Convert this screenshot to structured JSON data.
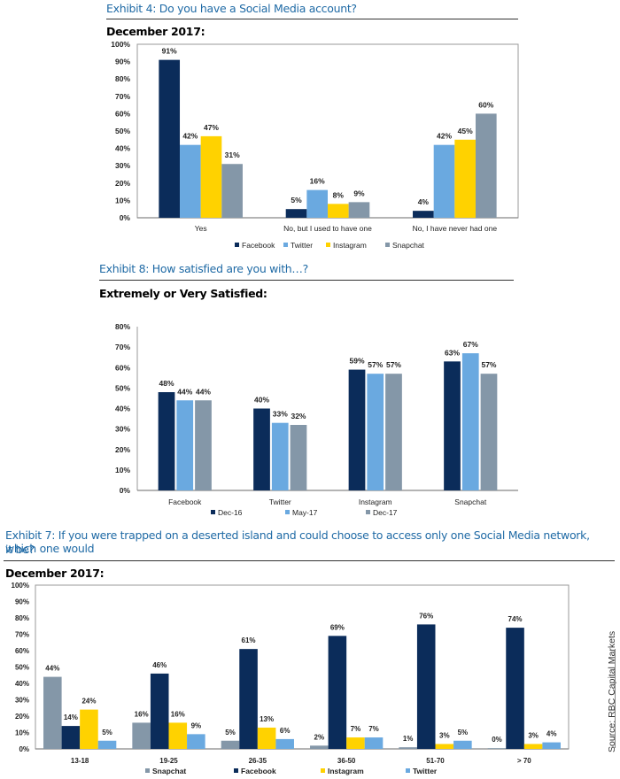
{
  "colors": {
    "facebook": "#0b2c5a",
    "twitter": "#6aa9e0",
    "instagram": "#ffd200",
    "snapchat": "#8497a8",
    "title_blue": "#1f6aa5"
  },
  "exhibit4": {
    "title": "Exhibit 4: Do you have a Social Media account?",
    "subtitle": "December 2017:"
  },
  "exhibit8": {
    "title": "Exhibit 8: How satisfied are you with…?",
    "subtitle": "Extremely or Very Satisfied:"
  },
  "exhibit7": {
    "title_line1": "Exhibit 7: If you were trapped on a deserted island and could choose to access only one Social Media network, which one would",
    "title_line2": "it be?",
    "subtitle": "December 2017:"
  },
  "source": "Source: RBC Capital Markets",
  "chart_data": [
    {
      "type": "bar",
      "title": "December 2017:",
      "xlabel": "",
      "ylabel": "",
      "ylim": [
        0,
        100
      ],
      "yticks": [
        "0%",
        "10%",
        "20%",
        "30%",
        "40%",
        "50%",
        "60%",
        "70%",
        "80%",
        "90%",
        "100%"
      ],
      "categories": [
        "Yes",
        "No, but I used to have one",
        "No, I have never had one"
      ],
      "legend_position": "bottom",
      "series": [
        {
          "name": "Facebook",
          "color_key": "facebook",
          "values": [
            91,
            5,
            4
          ],
          "labels": [
            "91%",
            "5%",
            "4%"
          ]
        },
        {
          "name": "Twitter",
          "color_key": "twitter",
          "values": [
            42,
            16,
            42
          ],
          "labels": [
            "42%",
            "16%",
            "42%"
          ]
        },
        {
          "name": "Instagram",
          "color_key": "instagram",
          "values": [
            47,
            8,
            45
          ],
          "labels": [
            "47%",
            "8%",
            "45%"
          ]
        },
        {
          "name": "Snapchat",
          "color_key": "snapchat",
          "values": [
            31,
            9,
            60
          ],
          "labels": [
            "31%",
            "9%",
            "60%"
          ]
        }
      ]
    },
    {
      "type": "bar",
      "title": "Extremely or Very Satisfied:",
      "xlabel": "",
      "ylabel": "",
      "ylim": [
        0,
        80
      ],
      "yticks": [
        "0%",
        "10%",
        "20%",
        "30%",
        "40%",
        "50%",
        "60%",
        "70%",
        "80%"
      ],
      "categories": [
        "Facebook",
        "Twitter",
        "Instagram",
        "Snapchat"
      ],
      "legend_position": "bottom",
      "series": [
        {
          "name": "Dec-16",
          "color_key": "facebook",
          "values": [
            48,
            40,
            59,
            63
          ],
          "labels": [
            "48%",
            "40%",
            "59%",
            "63%"
          ]
        },
        {
          "name": "May-17",
          "color_key": "twitter",
          "values": [
            44,
            33,
            57,
            67
          ],
          "labels": [
            "44%",
            "33%",
            "57%",
            "67%"
          ]
        },
        {
          "name": "Dec-17",
          "color_key": "snapchat",
          "values": [
            44,
            32,
            57,
            57
          ],
          "labels": [
            "44%",
            "32%",
            "57%",
            "57%"
          ]
        }
      ]
    },
    {
      "type": "bar",
      "title": "December 2017:",
      "xlabel": "",
      "ylabel": "",
      "ylim": [
        0,
        100
      ],
      "yticks": [
        "0%",
        "10%",
        "20%",
        "30%",
        "40%",
        "50%",
        "60%",
        "70%",
        "80%",
        "90%",
        "100%"
      ],
      "categories": [
        "13-18",
        "19-25",
        "26-35",
        "36-50",
        "51-70",
        "> 70"
      ],
      "legend_position": "bottom",
      "series": [
        {
          "name": "Snapchat",
          "color_key": "snapchat",
          "values": [
            44,
            16,
            5,
            2,
            1,
            0
          ],
          "labels": [
            "44%",
            "16%",
            "5%",
            "2%",
            "1%",
            "0%"
          ]
        },
        {
          "name": "Facebook",
          "color_key": "facebook",
          "values": [
            14,
            46,
            61,
            69,
            76,
            74
          ],
          "labels": [
            "14%",
            "46%",
            "61%",
            "69%",
            "76%",
            "74%"
          ]
        },
        {
          "name": "Instagram",
          "color_key": "instagram",
          "values": [
            24,
            16,
            13,
            7,
            3,
            3
          ],
          "labels": [
            "24%",
            "16%",
            "13%",
            "7%",
            "3%",
            "3%"
          ]
        },
        {
          "name": "Twitter",
          "color_key": "twitter",
          "values": [
            5,
            9,
            6,
            7,
            5,
            4
          ],
          "labels": [
            "5%",
            "9%",
            "6%",
            "7%",
            "5%",
            "4%"
          ]
        }
      ]
    }
  ]
}
